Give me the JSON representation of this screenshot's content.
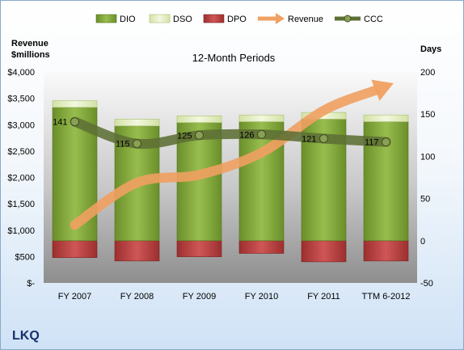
{
  "chart_data": {
    "type": "bar",
    "title": "12-Month Periods",
    "company": "LKQ",
    "left_axis_label_line1": "Revenue",
    "left_axis_label_line2": "$millions",
    "right_axis_label": "Days",
    "categories": [
      "FY 2007",
      "FY 2008",
      "FY 2009",
      "FY 2010",
      "FY 2011",
      "TTM 6-2012"
    ],
    "left_ylim": [
      0,
      4000
    ],
    "left_ticks": [
      "$-",
      "$500",
      "$1,000",
      "$1,500",
      "$2,000",
      "$2,500",
      "$3,000",
      "$3,500",
      "$4,000"
    ],
    "right_ylim": [
      -50,
      200
    ],
    "right_ticks": [
      "-50",
      "0",
      "50",
      "100",
      "150",
      "200"
    ],
    "grid": false,
    "legend_position": "top",
    "series": [
      {
        "name": "DIO",
        "axis": "right",
        "kind": "stacked-bar",
        "color": "#7fa23a",
        "values": [
          158,
          136,
          140,
          141,
          144,
          141
        ]
      },
      {
        "name": "DSO",
        "axis": "right",
        "kind": "stacked-bar",
        "color": "#e4efc4",
        "values": [
          8,
          8,
          8,
          8,
          8,
          8
        ]
      },
      {
        "name": "DPO",
        "axis": "right",
        "kind": "negative-bar",
        "color": "#b23a3a",
        "values": [
          -20,
          -24,
          -19,
          -15,
          -25,
          -24
        ]
      },
      {
        "name": "Revenue",
        "axis": "left",
        "kind": "line",
        "color": "#f0a060",
        "values": [
          1100,
          1900,
          2050,
          2470,
          3270,
          3730
        ]
      },
      {
        "name": "CCC",
        "axis": "right",
        "kind": "line",
        "color": "#5d7034",
        "values": [
          141,
          115,
          125,
          126,
          121,
          117
        ]
      }
    ],
    "ccc_labels": [
      "141",
      "115",
      "125",
      "126",
      "121",
      "117"
    ]
  }
}
